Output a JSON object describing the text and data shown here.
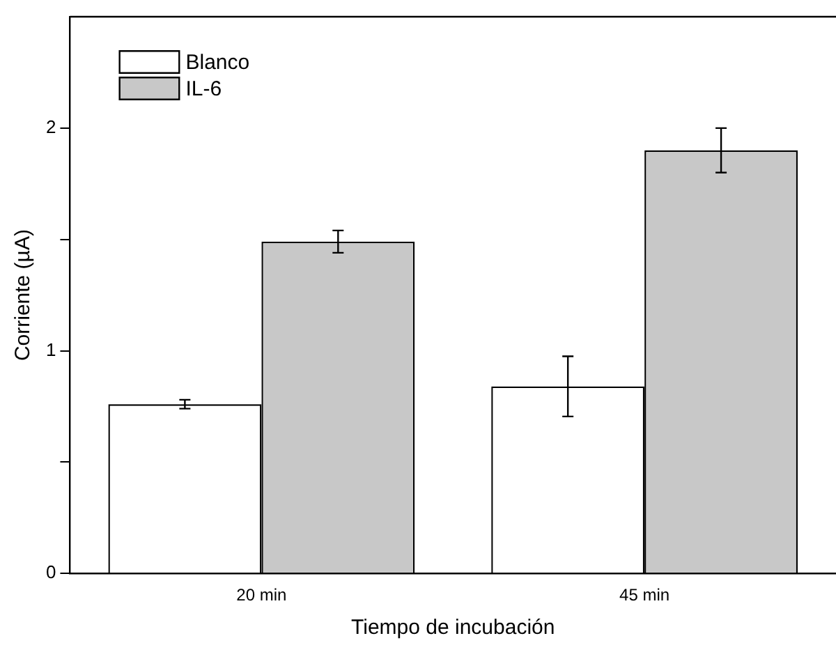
{
  "chart_data": {
    "type": "bar",
    "xlabel": "Tiempo de incubación",
    "ylabel": "Corriente (µA)",
    "categories": [
      "20 min",
      "45 min"
    ],
    "series": [
      {
        "name": "Blanco",
        "color": "#ffffff",
        "values": [
          0.76,
          0.84
        ],
        "errors": [
          0.02,
          0.135
        ]
      },
      {
        "name": "IL-6",
        "color": "#c8c8c8",
        "values": [
          1.49,
          1.9
        ],
        "errors": [
          0.05,
          0.1
        ]
      }
    ],
    "ylim": [
      0,
      2.5
    ],
    "yticks": [
      0,
      {
        "value": 0.5,
        "label": null
      },
      1,
      {
        "value": 1.5,
        "label": null
      },
      2
    ],
    "grid": false,
    "legend": "top left"
  }
}
